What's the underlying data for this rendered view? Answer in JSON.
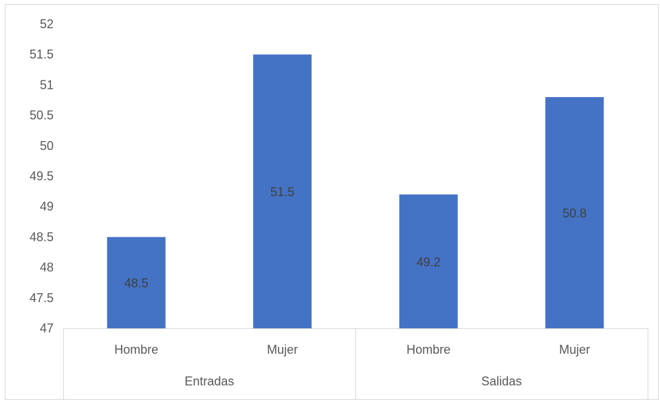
{
  "caption": "... ...",
  "chart_data": {
    "type": "bar",
    "title": "",
    "xlabel": "",
    "ylabel": "",
    "ylim": [
      47,
      52
    ],
    "yticks": [
      "47",
      "47.5",
      "48",
      "48.5",
      "49",
      "49.5",
      "50",
      "50.5",
      "51",
      "51.5",
      "52"
    ],
    "grid": false,
    "legend": "none",
    "bar_color": "#4472C4",
    "groups": [
      {
        "label": "Entradas",
        "categories": [
          "Hombre",
          "Mujer"
        ],
        "values": [
          48.5,
          51.5
        ],
        "value_labels": [
          "48.5",
          "51.5"
        ]
      },
      {
        "label": "Salidas",
        "categories": [
          "Hombre",
          "Mujer"
        ],
        "values": [
          49.2,
          50.8
        ],
        "value_labels": [
          "49.2",
          "50.8"
        ]
      }
    ]
  }
}
